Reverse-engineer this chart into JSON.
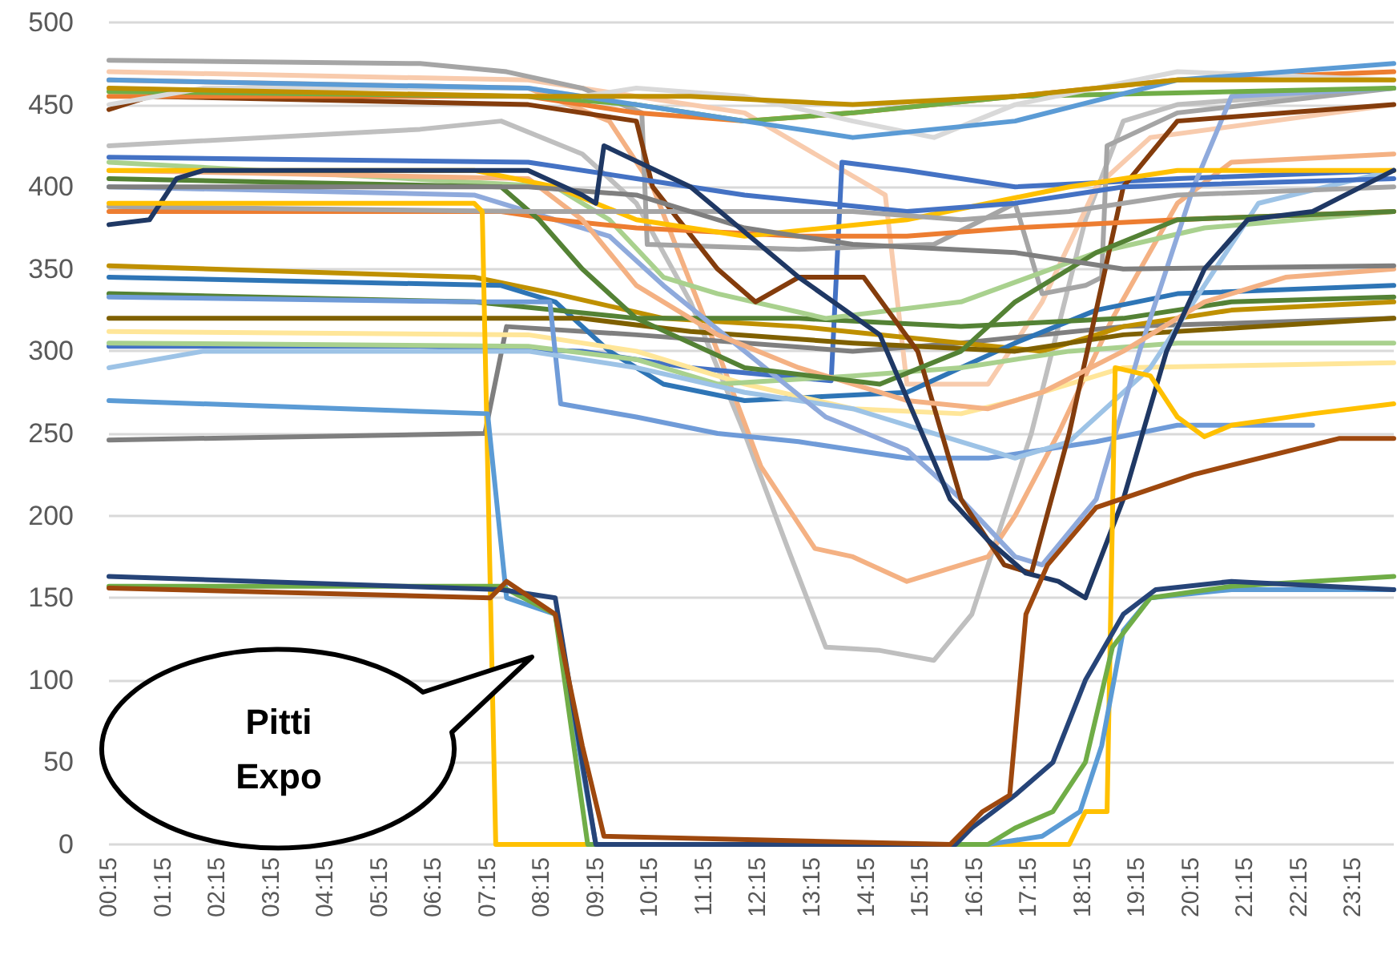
{
  "chart_data": {
    "type": "line",
    "ylim": [
      0,
      500
    ],
    "yticks": [
      0,
      50,
      100,
      150,
      200,
      250,
      300,
      350,
      400,
      450,
      500
    ],
    "xlim": [
      0.25,
      24
    ],
    "xticks": [
      {
        "value": 0.25,
        "label": "00:15"
      },
      {
        "value": 1.25,
        "label": "01:15"
      },
      {
        "value": 2.25,
        "label": "02:15"
      },
      {
        "value": 3.25,
        "label": "03:15"
      },
      {
        "value": 4.25,
        "label": "04:15"
      },
      {
        "value": 5.25,
        "label": "05:15"
      },
      {
        "value": 6.25,
        "label": "06:15"
      },
      {
        "value": 7.25,
        "label": "07:15"
      },
      {
        "value": 8.25,
        "label": "08:15"
      },
      {
        "value": 9.25,
        "label": "09:15"
      },
      {
        "value": 10.25,
        "label": "10:15"
      },
      {
        "value": 11.25,
        "label": "11:15"
      },
      {
        "value": 12.25,
        "label": "12:15"
      },
      {
        "value": 13.25,
        "label": "13:15"
      },
      {
        "value": 14.25,
        "label": "14:15"
      },
      {
        "value": 15.25,
        "label": "15:15"
      },
      {
        "value": 16.25,
        "label": "16:15"
      },
      {
        "value": 17.25,
        "label": "17:15"
      },
      {
        "value": 18.25,
        "label": "18:15"
      },
      {
        "value": 19.25,
        "label": "19:15"
      },
      {
        "value": 20.25,
        "label": "20:15"
      },
      {
        "value": 21.25,
        "label": "21:15"
      },
      {
        "value": 22.25,
        "label": "22:15"
      },
      {
        "value": 23.25,
        "label": "23:15"
      }
    ],
    "grid": "y",
    "marker": "none",
    "line_style": "solid",
    "annotations": [
      "Pitti Expo"
    ],
    "series": [
      {
        "color": "#bfbfbf",
        "x": [
          0.25,
          6,
          7.5,
          9,
          10,
          11,
          12,
          12.8,
          13.5,
          14.5,
          15.5,
          16.2,
          17.3,
          18.3,
          19,
          20,
          24
        ],
        "values": [
          425,
          435,
          440,
          420,
          390,
          330,
          250,
          180,
          120,
          118,
          112,
          140,
          250,
          380,
          440,
          450,
          460
        ]
      },
      {
        "color": "#f4b183",
        "x": [
          0.25,
          8,
          9.5,
          10.3,
          11.5,
          12.3,
          13.3,
          14,
          15,
          16,
          16.5,
          17,
          17.8,
          18.8,
          20,
          21,
          24
        ],
        "values": [
          465,
          460,
          440,
          400,
          300,
          230,
          180,
          175,
          160,
          170,
          175,
          200,
          250,
          320,
          390,
          415,
          420
        ]
      },
      {
        "color": "#f8cbad",
        "x": [
          0.25,
          8,
          12,
          14.6,
          15,
          16.5,
          17.5,
          18.5,
          19.5,
          24
        ],
        "values": [
          470,
          465,
          445,
          395,
          280,
          280,
          330,
          400,
          430,
          450
        ]
      },
      {
        "color": "#4472c4",
        "x": [
          0.25,
          6,
          9,
          11,
          13.6,
          13.8,
          15,
          17,
          20,
          24
        ],
        "values": [
          303,
          303,
          300,
          290,
          282,
          415,
          410,
          400,
          405,
          410
        ]
      },
      {
        "color": "#7f7f7f",
        "x": [
          0.25,
          7.2,
          7.6,
          10,
          14,
          16,
          19,
          24
        ],
        "values": [
          246,
          250,
          315,
          310,
          300,
          305,
          315,
          320
        ]
      },
      {
        "color": "#a5a5a5",
        "x": [
          0.25,
          6,
          7.6,
          9,
          10.1,
          10.2,
          13,
          15.5,
          17,
          17.5,
          18.3,
          18.6,
          18.7,
          20,
          24
        ],
        "values": [
          477,
          475,
          470,
          460,
          445,
          365,
          362,
          365,
          390,
          335,
          340,
          345,
          425,
          445,
          460
        ]
      },
      {
        "color": "#bf9000",
        "x": [
          0.25,
          7,
          8.5,
          10.5,
          13,
          17.5,
          19,
          21,
          24
        ],
        "values": [
          352,
          345,
          335,
          320,
          315,
          300,
          315,
          325,
          330
        ]
      },
      {
        "color": "#2e75b6",
        "x": [
          0.25,
          7.5,
          8.5,
          9.5,
          10.5,
          12,
          15,
          17,
          18.5,
          20,
          24
        ],
        "values": [
          345,
          340,
          330,
          300,
          280,
          270,
          275,
          305,
          325,
          335,
          340
        ]
      },
      {
        "color": "#548235",
        "x": [
          0.25,
          7,
          10,
          13,
          16,
          19,
          21,
          24
        ],
        "values": [
          335,
          330,
          320,
          320,
          315,
          320,
          330,
          333
        ]
      },
      {
        "color": "#7f6000",
        "x": [
          0.25,
          9,
          11,
          14,
          17,
          19,
          24
        ],
        "values": [
          320,
          320,
          312,
          305,
          300,
          310,
          320
        ]
      },
      {
        "color": "#ffe699",
        "x": [
          0.25,
          8,
          10,
          12,
          14,
          16,
          17,
          19,
          24
        ],
        "values": [
          312,
          310,
          300,
          280,
          265,
          262,
          270,
          290,
          293
        ]
      },
      {
        "color": "#a9d18e",
        "x": [
          0.25,
          8,
          10,
          11.5,
          14,
          16,
          18,
          20,
          24
        ],
        "values": [
          305,
          303,
          295,
          280,
          285,
          290,
          300,
          305,
          305
        ]
      },
      {
        "color": "#a9d18e",
        "x": [
          0.25,
          8.5,
          9.5,
          10.5,
          11.5,
          13.5,
          16,
          18.5,
          20.5,
          24
        ],
        "values": [
          415,
          400,
          380,
          345,
          335,
          320,
          330,
          360,
          375,
          385
        ]
      },
      {
        "color": "#6f9bd8",
        "x": [
          0.25,
          7,
          8.4,
          8.6,
          10,
          11.5,
          13,
          15,
          16.5,
          17.5,
          18.5,
          20,
          22.5
        ],
        "values": [
          333,
          330,
          330,
          268,
          260,
          250,
          245,
          235,
          235,
          240,
          245,
          255,
          255
        ]
      },
      {
        "color": "#9dc3e6",
        "x": [
          0.25,
          2,
          8,
          10,
          12,
          14,
          16,
          17,
          18,
          19.5,
          20.5,
          21.5,
          24
        ],
        "values": [
          290,
          300,
          300,
          290,
          275,
          265,
          245,
          235,
          245,
          290,
          340,
          390,
          410
        ]
      },
      {
        "color": "#8faadc",
        "x": [
          0.25,
          7,
          9.5,
          10.5,
          12,
          13.5,
          15,
          16,
          17,
          17.5,
          18,
          18.5,
          19.3,
          20.3,
          21,
          24
        ],
        "values": [
          400,
          395,
          370,
          340,
          300,
          260,
          240,
          210,
          175,
          170,
          190,
          210,
          300,
          400,
          455,
          460
        ]
      },
      {
        "color": "#843c0c",
        "x": [
          0.25,
          1,
          8,
          10,
          10.3,
          11.5,
          12.2,
          13,
          14.2,
          15.2,
          16,
          16.8,
          17.3,
          18,
          19,
          20,
          24
        ],
        "values": [
          447,
          455,
          450,
          440,
          400,
          350,
          330,
          345,
          345,
          300,
          210,
          170,
          165,
          250,
          400,
          440,
          450
        ]
      },
      {
        "color": "#ed7d31",
        "x": [
          0.25,
          8,
          10,
          12,
          14,
          17,
          20,
          24
        ],
        "values": [
          455,
          455,
          445,
          440,
          445,
          455,
          465,
          470
        ]
      },
      {
        "color": "#ed7d31",
        "x": [
          0.25,
          7.5,
          8.5,
          10,
          13,
          15,
          17,
          20,
          24
        ],
        "values": [
          385,
          385,
          380,
          375,
          370,
          370,
          375,
          380,
          385
        ]
      },
      {
        "color": "#f4b183",
        "x": [
          0.25,
          8,
          9,
          10,
          11.5,
          13,
          15,
          16.5,
          17.5,
          19,
          20.5,
          22,
          24
        ],
        "values": [
          410,
          405,
          380,
          340,
          310,
          290,
          270,
          265,
          275,
          300,
          330,
          345,
          350
        ]
      },
      {
        "color": "#70ad47",
        "x": [
          0.25,
          8,
          10,
          12,
          14,
          17,
          24
        ],
        "values": [
          458,
          455,
          450,
          440,
          445,
          455,
          460
        ]
      },
      {
        "color": "#548235",
        "x": [
          0.25,
          7.5,
          8.2,
          9,
          10,
          12,
          14.5,
          16,
          17,
          18.5,
          20,
          24
        ],
        "values": [
          405,
          400,
          380,
          350,
          320,
          290,
          280,
          300,
          330,
          360,
          380,
          385
        ]
      },
      {
        "color": "#d9d9d9",
        "x": [
          0.25,
          2,
          8,
          9,
          10,
          12,
          14,
          15.5,
          17,
          20,
          24
        ],
        "values": [
          450,
          460,
          460,
          455,
          460,
          455,
          440,
          430,
          450,
          470,
          465
        ]
      },
      {
        "color": "#ffc000",
        "x": [
          0.25,
          7,
          8.5,
          10,
          12,
          15,
          18,
          20,
          24
        ],
        "values": [
          410,
          410,
          400,
          380,
          370,
          380,
          400,
          410,
          410
        ]
      },
      {
        "color": "#4472c4",
        "x": [
          0.25,
          8,
          10,
          12,
          15,
          17,
          19,
          24
        ],
        "values": [
          418,
          415,
          405,
          395,
          385,
          390,
          400,
          405
        ]
      },
      {
        "color": "#5b9bd5",
        "x": [
          0.25,
          8,
          10,
          12,
          14,
          17,
          20,
          24
        ],
        "values": [
          465,
          460,
          450,
          440,
          430,
          440,
          465,
          475
        ]
      },
      {
        "color": "#bf9000",
        "x": [
          0.25,
          8,
          11,
          14,
          17,
          20,
          24
        ],
        "values": [
          460,
          455,
          455,
          450,
          455,
          465,
          465
        ]
      },
      {
        "color": "#a5a5a5",
        "x": [
          0.25,
          8,
          10,
          14,
          16,
          18,
          20,
          24
        ],
        "values": [
          388,
          385,
          385,
          385,
          380,
          385,
          395,
          400
        ]
      },
      {
        "color": "#7f7f7f",
        "x": [
          0.25,
          8,
          10,
          12,
          14,
          17,
          19,
          24
        ],
        "values": [
          400,
          400,
          395,
          375,
          365,
          360,
          350,
          352
        ]
      },
      {
        "color": "#1f3864",
        "x": [
          0.25,
          1,
          1.5,
          2,
          8,
          9,
          9.25,
          9.4,
          11,
          13,
          14.5,
          15.8,
          16.5,
          17.2,
          17.8,
          18.3,
          19,
          19.8,
          20.5,
          21.3,
          22.5,
          24
        ],
        "values": [
          377,
          380,
          405,
          410,
          410,
          395,
          390,
          425,
          400,
          345,
          310,
          210,
          185,
          165,
          160,
          150,
          210,
          300,
          350,
          380,
          385,
          410
        ]
      },
      {
        "color": "#ffc000",
        "x": [
          0.25,
          7,
          7.15,
          7.4,
          18,
          18.3,
          18.7,
          18.85,
          19.5,
          20,
          20.5,
          21,
          22.5,
          24
        ],
        "values": [
          390,
          390,
          385,
          0,
          0,
          20,
          20,
          290,
          285,
          260,
          248,
          255,
          262,
          268
        ]
      },
      {
        "color": "#5b9bd5",
        "x": [
          0.25,
          7.25,
          7.6,
          8.5,
          9.25,
          16.5,
          17.5,
          18.2,
          18.6,
          19,
          19.5,
          21,
          24
        ],
        "values": [
          270,
          262,
          150,
          140,
          0,
          0,
          5,
          20,
          60,
          130,
          150,
          155,
          155
        ]
      },
      {
        "color": "#70ad47",
        "x": [
          0.25,
          7.5,
          8.5,
          9.1,
          16.5,
          17,
          17.7,
          18.3,
          18.8,
          19.5,
          21,
          24
        ],
        "values": [
          157,
          157,
          140,
          0,
          0,
          10,
          20,
          50,
          120,
          150,
          157,
          163
        ]
      },
      {
        "color": "#264478",
        "x": [
          0.25,
          7.5,
          8.5,
          9.25,
          15.9,
          16.2,
          17,
          17.7,
          18.3,
          19,
          19.6,
          21,
          24
        ],
        "values": [
          163,
          155,
          150,
          0,
          0,
          10,
          30,
          50,
          100,
          140,
          155,
          160,
          155
        ]
      },
      {
        "color": "#9e480e",
        "x": [
          0.25,
          7.3,
          7.6,
          8.5,
          9.0,
          9.4,
          15.8,
          16.4,
          16.9,
          17.2,
          17.6,
          18.5,
          20.3,
          23,
          24
        ],
        "values": [
          156,
          150,
          160,
          140,
          60,
          5,
          0,
          20,
          30,
          140,
          170,
          205,
          225,
          247,
          247
        ]
      }
    ]
  }
}
